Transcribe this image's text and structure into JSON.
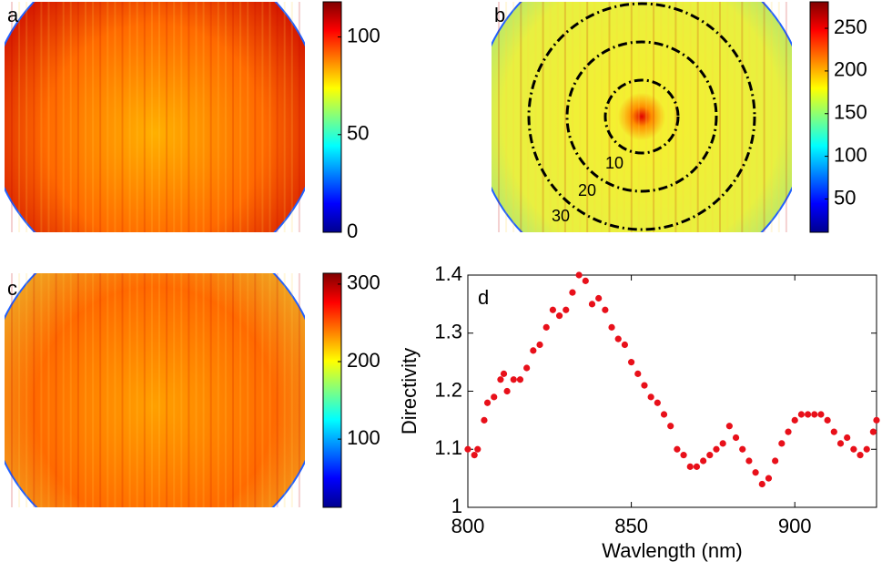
{
  "chart_data": [
    {
      "type": "image",
      "label": "a",
      "colormap": "jet",
      "clim": [
        0,
        118
      ],
      "cticks": [
        0,
        50,
        100
      ]
    },
    {
      "type": "image",
      "label": "b",
      "colormap": "jet",
      "clim": [
        11,
        281
      ],
      "cticks": [
        50,
        100,
        150,
        200,
        250
      ],
      "annotations": [
        "10",
        "20",
        "30"
      ]
    },
    {
      "type": "image",
      "label": "c",
      "colormap": "jet",
      "clim": [
        12,
        314
      ],
      "cticks": [
        100,
        200,
        300
      ]
    },
    {
      "type": "scatter",
      "label": "d",
      "color": "#e8101a",
      "xlabel": "Wavlength (nm)",
      "ylabel": "Directivity",
      "xlim": [
        800,
        925
      ],
      "ylim": [
        1,
        1.4
      ],
      "xticks": [
        800,
        850,
        900
      ],
      "yticks": [
        1,
        1.1,
        1.2,
        1.3,
        1.4
      ],
      "x": [
        800,
        802,
        803,
        805,
        806,
        808,
        810,
        811,
        812,
        814,
        816,
        818,
        820,
        822,
        824,
        826,
        828,
        830,
        832,
        834,
        836,
        838,
        840,
        842,
        844,
        846,
        848,
        850,
        852,
        854,
        856,
        858,
        860,
        862,
        864,
        866,
        868,
        870,
        872,
        874,
        876,
        878,
        880,
        882,
        884,
        886,
        888,
        890,
        892,
        894,
        896,
        898,
        900,
        902,
        904,
        906,
        908,
        910,
        912,
        914,
        916,
        918,
        920,
        922,
        924,
        925
      ],
      "y": [
        1.1,
        1.09,
        1.1,
        1.15,
        1.18,
        1.19,
        1.22,
        1.23,
        1.2,
        1.22,
        1.22,
        1.24,
        1.27,
        1.28,
        1.31,
        1.34,
        1.33,
        1.34,
        1.37,
        1.4,
        1.39,
        1.35,
        1.36,
        1.34,
        1.31,
        1.29,
        1.28,
        1.25,
        1.23,
        1.21,
        1.19,
        1.18,
        1.16,
        1.14,
        1.1,
        1.09,
        1.07,
        1.07,
        1.08,
        1.09,
        1.1,
        1.11,
        1.14,
        1.12,
        1.1,
        1.08,
        1.06,
        1.04,
        1.05,
        1.08,
        1.11,
        1.13,
        1.15,
        1.16,
        1.16,
        1.16,
        1.16,
        1.15,
        1.13,
        1.11,
        1.12,
        1.1,
        1.09,
        1.1,
        1.13,
        1.15
      ]
    }
  ]
}
